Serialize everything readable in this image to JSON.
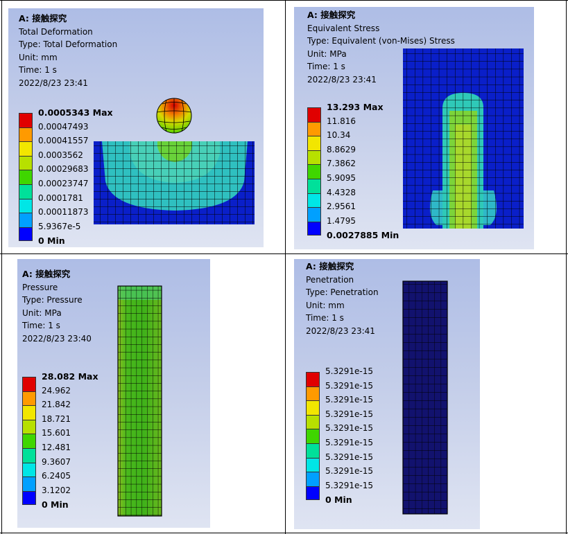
{
  "panels": [
    {
      "model": "A: 接触探究",
      "result": "Total Deformation",
      "type": "Type: Total Deformation",
      "unit": "Unit: mm",
      "time": "Time: 1 s",
      "date": "2022/8/23 23:41",
      "legend": [
        "0.0005343 Max",
        "0.00047493",
        "0.00041557",
        "0.0003562",
        "0.00029683",
        "0.00023747",
        "0.0001781",
        "0.00011873",
        "5.9367e-5",
        "0 Min"
      ]
    },
    {
      "model": "A: 接触探究",
      "result": "Equivalent Stress",
      "type": "Type: Equivalent (von-Mises) Stress",
      "unit": "Unit: MPa",
      "time": "Time: 1 s",
      "date": "2022/8/23 23:41",
      "legend": [
        "13.293 Max",
        "11.816",
        "10.34",
        "8.8629",
        "7.3862",
        "5.9095",
        "4.4328",
        "2.9561",
        "1.4795",
        "0.0027885 Min"
      ]
    },
    {
      "model": "A: 接触探究",
      "result": "Pressure",
      "type": "Type: Pressure",
      "unit": "Unit: MPa",
      "time": "Time: 1 s",
      "date": "2022/8/23 23:40",
      "legend": [
        "28.082 Max",
        "24.962",
        "21.842",
        "18.721",
        "15.601",
        "12.481",
        "9.3607",
        "6.2405",
        "3.1202",
        "0 Min"
      ]
    },
    {
      "model": "A: 接触探究",
      "result": "Penetration",
      "type": "Type: Penetration",
      "unit": "Unit: mm",
      "time": "Time: 1 s",
      "date": "2022/8/23 23:41",
      "legend": [
        "5.3291e-15",
        "5.3291e-15",
        "5.3291e-15",
        "5.3291e-15",
        "5.3291e-15",
        "5.3291e-15",
        "5.3291e-15",
        "5.3291e-15",
        "5.3291e-15",
        "0 Min"
      ]
    }
  ],
  "legend_colors": [
    "#e00000",
    "#ff9a00",
    "#f2e600",
    "#b7e000",
    "#3fd600",
    "#00e09a",
    "#00e6e6",
    "#00a0ff",
    "#0000ff"
  ]
}
